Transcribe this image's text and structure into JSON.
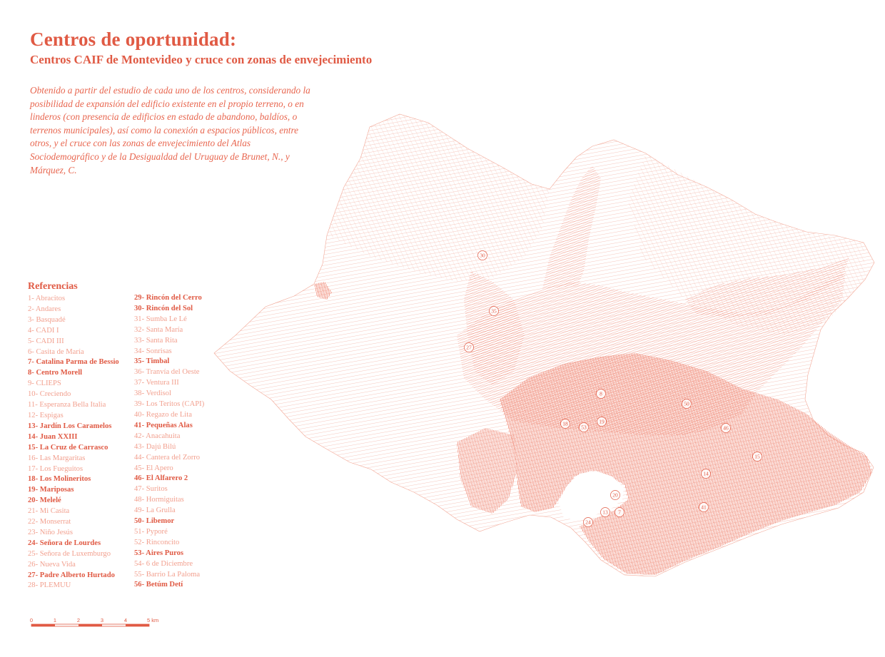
{
  "header": {
    "title": "Centros de oportunidad:",
    "subtitle": "Centros  CAIF de Montevideo y cruce con zonas de envejecimiento"
  },
  "description": "Obtenido a partir del estudio de cada uno de los centros, considerando la posibilidad de expansión del edificio existente en el propio terreno, o en linderos (con presencia de edificios en estado de abandono, baldíos, o terrenos municipales), así como la conexión a espacios públicos, entre otros, y el cruce con las zonas de envejecimiento del Atlas Sociodemográfico y de la Desigualdad del Uruguay de Brunet, N., y Márquez, C.",
  "legend": {
    "heading": "Referencias",
    "columns": [
      [
        {
          "label": "1- Abracitos",
          "highlight": false
        },
        {
          "label": "2- Andares",
          "highlight": false
        },
        {
          "label": "3- Basquadé",
          "highlight": false
        },
        {
          "label": "4- CADI I",
          "highlight": false
        },
        {
          "label": "5- CADI III",
          "highlight": false
        },
        {
          "label": "6- Casita de María",
          "highlight": false
        },
        {
          "label": "7- Catalina Parma de Bessio",
          "highlight": true
        },
        {
          "label": "8- Centro Morell",
          "highlight": true
        },
        {
          "label": "9- CLIEPS",
          "highlight": false
        },
        {
          "label": "10- Creciendo",
          "highlight": false
        },
        {
          "label": "11- Esperanza Bella Italia",
          "highlight": false
        },
        {
          "label": "12- Espigas",
          "highlight": false
        },
        {
          "label": "13- Jardín Los Caramelos",
          "highlight": true
        },
        {
          "label": "14- Juan XXIII",
          "highlight": true
        },
        {
          "label": "15- La Cruz de Carrasco",
          "highlight": true
        },
        {
          "label": "16- Las Margaritas",
          "highlight": false
        },
        {
          "label": "17- Los Fueguitos",
          "highlight": false
        },
        {
          "label": "18- Los Molineritos",
          "highlight": true
        },
        {
          "label": "19- Mariposas",
          "highlight": true
        },
        {
          "label": "20- Melelé",
          "highlight": true
        },
        {
          "label": "21- Mi Casita",
          "highlight": false
        },
        {
          "label": "22- Monserrat",
          "highlight": false
        },
        {
          "label": "23- Niño Jesús",
          "highlight": false
        },
        {
          "label": "24- Señora de Lourdes",
          "highlight": true
        },
        {
          "label": "25- Señora de Luxemburgo",
          "highlight": false
        },
        {
          "label": "26- Nueva Vida",
          "highlight": false
        },
        {
          "label": "27- Padre Alberto Hurtado",
          "highlight": true
        },
        {
          "label": "28- PLEMUU",
          "highlight": false
        }
      ],
      [
        {
          "label": "29- Rincón del Cerro",
          "highlight": true
        },
        {
          "label": "30- Rincón del Sol",
          "highlight": true
        },
        {
          "label": "31- Sumba Le Lé",
          "highlight": false
        },
        {
          "label": "32- Santa María",
          "highlight": false
        },
        {
          "label": "33- Santa Rita",
          "highlight": false
        },
        {
          "label": "34- Sonrisas",
          "highlight": false
        },
        {
          "label": "35- Timbal",
          "highlight": true
        },
        {
          "label": "36- Tranvía del Oeste",
          "highlight": false
        },
        {
          "label": "37- Ventura III",
          "highlight": false
        },
        {
          "label": "38- Verdisol",
          "highlight": false
        },
        {
          "label": "39- Los Teritos (CAPI)",
          "highlight": false
        },
        {
          "label": "40- Regazo de Lita",
          "highlight": false
        },
        {
          "label": "41- Pequeñas Alas",
          "highlight": true
        },
        {
          "label": "42- Anacahuita",
          "highlight": false
        },
        {
          "label": "43- Dajú Bilú",
          "highlight": false
        },
        {
          "label": "44- Cantera del Zorro",
          "highlight": false
        },
        {
          "label": "45- El Apero",
          "highlight": false
        },
        {
          "label": "46- El Alfarero 2",
          "highlight": true
        },
        {
          "label": "47- Suritos",
          "highlight": false
        },
        {
          "label": "48- Hormiguitas",
          "highlight": false
        },
        {
          "label": "49- La Grulla",
          "highlight": false
        },
        {
          "label": "50- Libemor",
          "highlight": true
        },
        {
          "label": "51- Pyporé",
          "highlight": false
        },
        {
          "label": "52- Rinconcito",
          "highlight": false
        },
        {
          "label": "53- Aires Puros",
          "highlight": true
        },
        {
          "label": "54- 6 de Diciembre",
          "highlight": false
        },
        {
          "label": "55- Barrio La Paloma",
          "highlight": false
        },
        {
          "label": "56- Betúm Detí",
          "highlight": true
        }
      ]
    ]
  },
  "map": {
    "markers": [
      "30",
      "35",
      "27",
      "8",
      "50",
      "18",
      "53",
      "19",
      "46",
      "15",
      "14",
      "20",
      "13",
      "7",
      "24",
      "41"
    ]
  },
  "scale": {
    "ticks": [
      "0",
      "1",
      "2",
      "3",
      "4"
    ],
    "end_label": "5 km"
  },
  "colors": {
    "accent": "#e05a44",
    "dense": "#ee7560",
    "faint": "#f2a08f"
  }
}
